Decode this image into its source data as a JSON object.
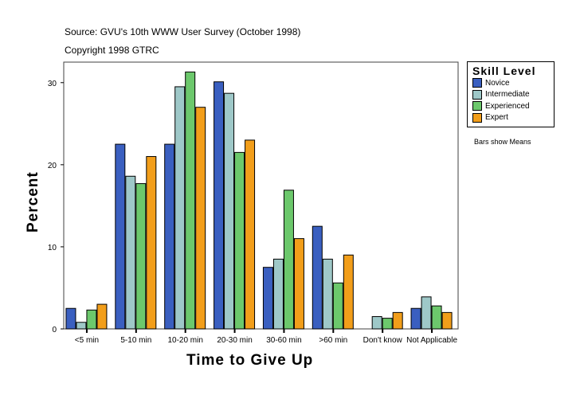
{
  "chart_data": {
    "type": "bar",
    "source": "Source: GVU's 10th WWW User Survey (October 1998)",
    "copyright": "Copyright 1998 GTRC",
    "xlabel": "Time to Give Up",
    "ylabel": "Percent",
    "ylim": [
      0,
      32.5
    ],
    "yticks": [
      0,
      10,
      20,
      30
    ],
    "categories": [
      "<5 min",
      "5-10 min",
      "10-20 min",
      "20-30 min",
      "30-60 min",
      ">60 min",
      "Don't know",
      "Not Applicable"
    ],
    "legend_title": "Skill Level",
    "legend_position": "right",
    "note": "Bars show Means",
    "series": [
      {
        "name": "Novice",
        "color": "#3a5fc0",
        "values": [
          2.5,
          22.5,
          22.5,
          30.1,
          7.5,
          12.5,
          0,
          2.5
        ]
      },
      {
        "name": "Intermediate",
        "color": "#9ec8c8",
        "values": [
          0.8,
          18.6,
          29.5,
          28.7,
          8.5,
          8.5,
          1.5,
          3.9
        ]
      },
      {
        "name": "Experienced",
        "color": "#6cc86c",
        "values": [
          2.3,
          17.7,
          31.3,
          21.5,
          16.9,
          5.6,
          1.3,
          2.8
        ]
      },
      {
        "name": "Expert",
        "color": "#f29e1a",
        "values": [
          3.0,
          21.0,
          27.0,
          23.0,
          11.0,
          9.0,
          2.0,
          2.0
        ]
      }
    ]
  }
}
